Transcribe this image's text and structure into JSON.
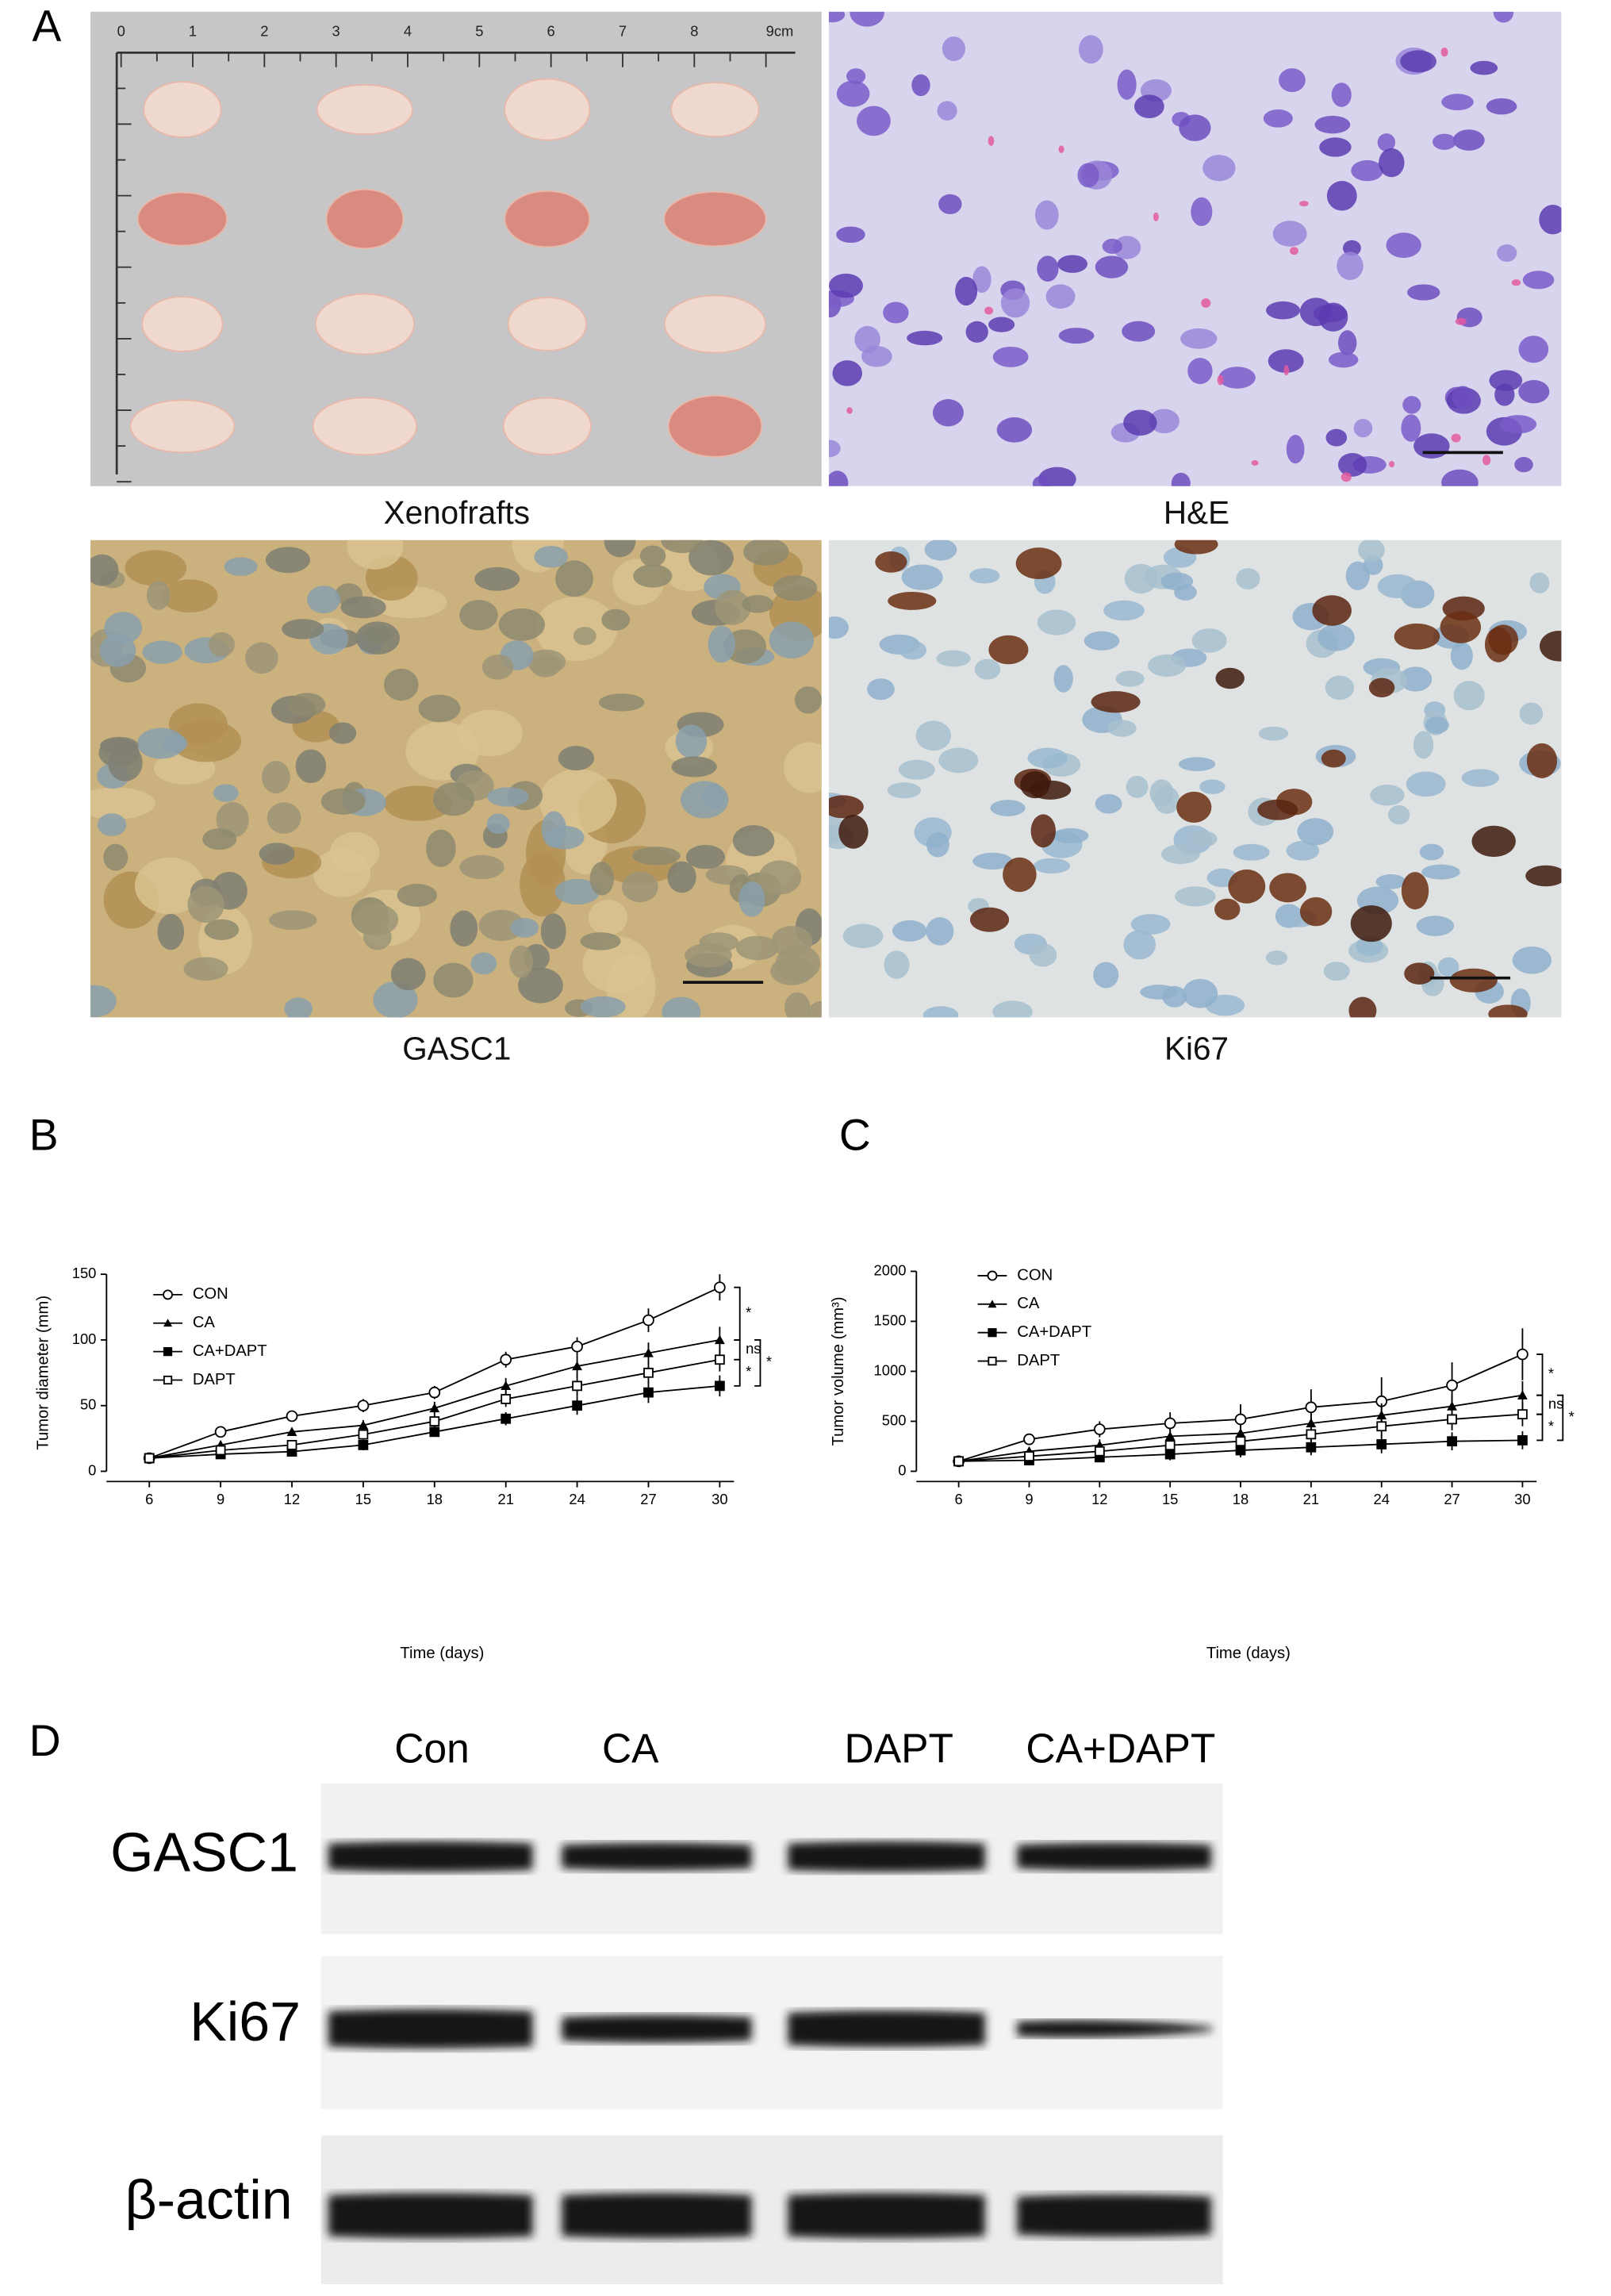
{
  "panel_labels": [
    "A",
    "B",
    "C",
    "D"
  ],
  "image_captions": [
    "Xenofrafts",
    "H&E",
    "GASC1",
    "Ki67"
  ],
  "ruler_labels": [
    "0",
    "1",
    "2",
    "3",
    "4",
    "5",
    "6",
    "7",
    "8",
    "9cm"
  ],
  "blot": {
    "lanes": [
      "Con",
      "CA",
      "DAPT",
      "CA+DAPT"
    ],
    "rows": [
      "GASC1",
      "Ki67",
      "β-actin"
    ]
  },
  "chart_data": [
    {
      "type": "line",
      "xlabel": "Time (days)",
      "ylabel": "Tumor diameter (mm)",
      "x": [
        6,
        9,
        12,
        15,
        18,
        21,
        24,
        27,
        30
      ],
      "xlim": [
        4.2,
        30.6
      ],
      "xticks": [
        6,
        9,
        12,
        15,
        18,
        21,
        24,
        27,
        30
      ],
      "ylim": [
        0,
        150
      ],
      "yticks": [
        0,
        50,
        100,
        150
      ],
      "series": [
        {
          "name": "CON",
          "color": "#000000",
          "marker": "circle-open",
          "values": [
            10,
            30,
            42,
            50,
            60,
            85,
            95,
            115,
            140
          ],
          "errors": [
            1,
            2,
            4,
            5,
            5,
            6,
            7,
            9,
            10
          ]
        },
        {
          "name": "CA",
          "color": "#000000",
          "marker": "triangle",
          "values": [
            10,
            20,
            30,
            35,
            48,
            65,
            80,
            90,
            100
          ],
          "errors": [
            1,
            2,
            3,
            4,
            5,
            6,
            8,
            8,
            10
          ]
        },
        {
          "name": "CA+DAPT",
          "color": "#000000",
          "marker": "square",
          "values": [
            10,
            13,
            15,
            20,
            30,
            40,
            50,
            60,
            65
          ],
          "errors": [
            1,
            2,
            3,
            4,
            3,
            5,
            7,
            8,
            8
          ]
        },
        {
          "name": "DAPT",
          "color": "#000000",
          "marker": "square-open",
          "values": [
            10,
            16,
            20,
            28,
            38,
            55,
            65,
            75,
            85
          ],
          "errors": [
            1,
            2,
            3,
            4,
            5,
            6,
            8,
            8,
            9
          ]
        }
      ],
      "annotations": [
        "*",
        "ns",
        "*",
        "*"
      ]
    },
    {
      "type": "line",
      "xlabel": "Time (days)",
      "ylabel": "Tumor volume (mm³)",
      "x": [
        6,
        9,
        12,
        15,
        18,
        21,
        24,
        27,
        30
      ],
      "xlim": [
        4.2,
        30.6
      ],
      "xticks": [
        6,
        9,
        12,
        15,
        18,
        21,
        24,
        27,
        30
      ],
      "ylim": [
        0,
        2000
      ],
      "yticks": [
        0,
        500,
        1000,
        1500,
        2000
      ],
      "series": [
        {
          "name": "CON",
          "color": "#000000",
          "marker": "circle-open",
          "values": [
            100,
            320,
            420,
            480,
            520,
            640,
            700,
            860,
            1170
          ],
          "errors": [
            10,
            20,
            80,
            110,
            150,
            180,
            240,
            230,
            260
          ]
        },
        {
          "name": "CA",
          "color": "#000000",
          "marker": "triangle",
          "values": [
            100,
            200,
            260,
            350,
            380,
            480,
            560,
            650,
            760
          ],
          "errors": [
            10,
            30,
            60,
            80,
            90,
            100,
            120,
            130,
            140
          ]
        },
        {
          "name": "CA+DAPT",
          "color": "#000000",
          "marker": "square",
          "values": [
            100,
            110,
            140,
            170,
            210,
            240,
            270,
            300,
            310
          ],
          "errors": [
            10,
            20,
            40,
            60,
            70,
            80,
            90,
            90,
            90
          ]
        },
        {
          "name": "DAPT",
          "color": "#000000",
          "marker": "square-open",
          "values": [
            100,
            150,
            200,
            260,
            300,
            370,
            450,
            520,
            570
          ],
          "errors": [
            10,
            30,
            50,
            70,
            80,
            90,
            100,
            110,
            120
          ]
        }
      ],
      "annotations": [
        "*",
        "ns",
        "*",
        "*"
      ]
    }
  ]
}
